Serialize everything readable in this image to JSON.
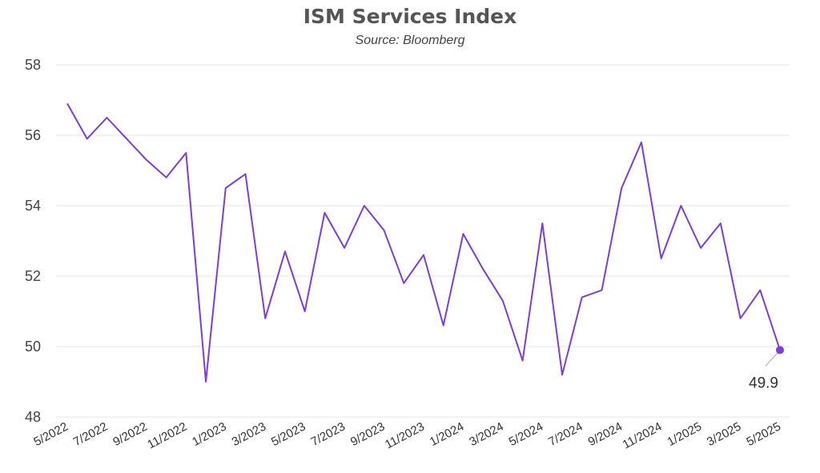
{
  "chart_data": {
    "type": "line",
    "title": "ISM Services Index",
    "subtitle": "Source: Bloomberg",
    "xlabel": "",
    "ylabel": "",
    "ylim": [
      48,
      58
    ],
    "yticks": [
      "48",
      "50",
      "52",
      "54",
      "56",
      "58"
    ],
    "grid": true,
    "line_color": "#7B3FD6",
    "x": [
      "5/2022",
      "6/2022",
      "7/2022",
      "8/2022",
      "9/2022",
      "10/2022",
      "11/2022",
      "12/2022",
      "1/2023",
      "2/2023",
      "3/2023",
      "4/2023",
      "5/2023",
      "6/2023",
      "7/2023",
      "8/2023",
      "9/2023",
      "10/2023",
      "11/2023",
      "12/2023",
      "1/2024",
      "2/2024",
      "3/2024",
      "4/2024",
      "5/2024",
      "6/2024",
      "7/2024",
      "8/2024",
      "9/2024",
      "10/2024",
      "11/2024",
      "12/2024",
      "1/2025",
      "2/2025",
      "3/2025",
      "4/2025",
      "5/2025"
    ],
    "xtick_labels": [
      "5/2022",
      "7/2022",
      "9/2022",
      "11/2022",
      "1/2023",
      "3/2023",
      "5/2023",
      "7/2023",
      "9/2023",
      "11/2023",
      "1/2024",
      "3/2024",
      "5/2024",
      "7/2024",
      "9/2024",
      "11/2024",
      "1/2025",
      "3/2025",
      "5/2025"
    ],
    "series": [
      {
        "values": [
          56.9,
          55.9,
          56.5,
          55.9,
          55.3,
          54.8,
          55.5,
          49.0,
          54.5,
          54.9,
          50.8,
          52.7,
          51.0,
          53.8,
          52.8,
          54.0,
          53.3,
          51.8,
          52.6,
          50.6,
          53.2,
          52.2,
          51.3,
          49.6,
          53.5,
          49.2,
          51.4,
          51.6,
          54.5,
          55.8,
          52.5,
          54.0,
          52.8,
          53.5,
          50.8,
          51.6,
          49.9
        ]
      }
    ],
    "annotation": {
      "label": "49.9",
      "at": "5/2025"
    }
  }
}
